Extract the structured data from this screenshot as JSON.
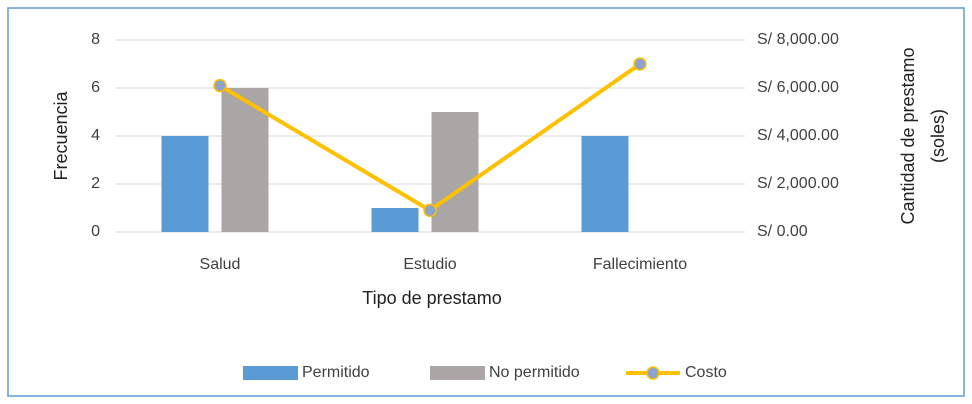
{
  "chart_data": {
    "type": "bar-line",
    "categories": [
      "Salud",
      "Estudio",
      "Fallecimiento"
    ],
    "series": [
      {
        "name": "Permitido",
        "color": "#5b9bd5",
        "type": "bar",
        "values": [
          4,
          1,
          4
        ]
      },
      {
        "name": "No permitido",
        "color": "#a9a6a5",
        "type": "bar",
        "values": [
          6,
          5,
          0
        ]
      },
      {
        "name": "Costo",
        "color": "#ffc000",
        "marker_color": "#8da3c9",
        "type": "line",
        "axis": "y2",
        "values": [
          6100,
          900,
          7000
        ]
      }
    ],
    "x_label": "Tipo de prestamo",
    "y_label": "Frecuencia",
    "y2_label": [
      "Cantidad de prestamo",
      "(soles)"
    ],
    "ylim": [
      0,
      8
    ],
    "yticks": [
      0,
      2,
      4,
      6,
      8
    ],
    "y2lim": [
      0,
      8000
    ],
    "y2ticks": [
      {
        "value": 0,
        "label": "S/ 0.00"
      },
      {
        "value": 2000,
        "label": "S/ 2,000.00"
      },
      {
        "value": 4000,
        "label": "S/ 4,000.00"
      },
      {
        "value": 6000,
        "label": "S/ 6,000.00"
      },
      {
        "value": 8000,
        "label": "S/ 8,000.00"
      }
    ],
    "grid": true,
    "legend": "bottom"
  }
}
